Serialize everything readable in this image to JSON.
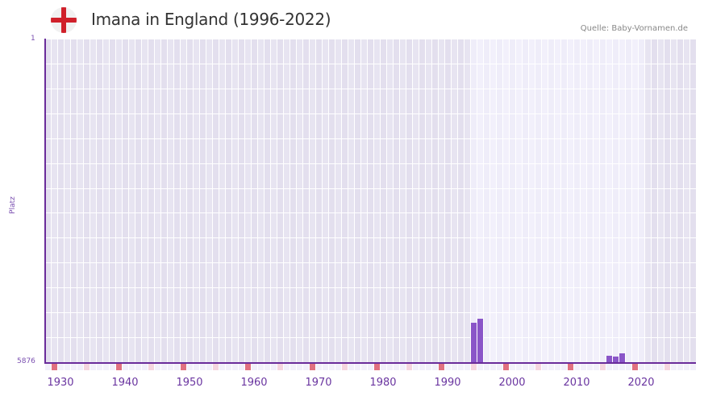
{
  "header": {
    "flag_icon": "england-flag-icon",
    "title": "Imana in England (1996-2022)",
    "source": "Quelle: Baby-Vornamen.de"
  },
  "colors": {
    "bar": "#8a55c8",
    "axis": "#6a2c9a",
    "bg_dark": "#e3dfee",
    "bg_light": "#efedf9",
    "marker_decade": "#e07080",
    "marker_half": "#f5d5df"
  },
  "chart_data": {
    "type": "bar",
    "title": "Imana in England (1996-2022)",
    "xlabel": "",
    "ylabel": "Platz",
    "y_inverted": true,
    "ylim": [
      5876,
      1
    ],
    "y_ticks": [
      "1",
      "5876"
    ],
    "x_range": [
      1928,
      2028
    ],
    "x_ticks": [
      "1930",
      "1940",
      "1950",
      "1960",
      "1970",
      "1980",
      "1990",
      "2000",
      "2010",
      "2020"
    ],
    "highlight_range": [
      1994,
      2020
    ],
    "grid": true,
    "categories": [
      "1994",
      "1995",
      "2015",
      "2016",
      "2017"
    ],
    "series": [
      {
        "name": "Platz",
        "values": [
          5156,
          5083,
          5759,
          5773,
          5714
        ]
      }
    ]
  },
  "axis": {
    "y_top": "1",
    "y_bottom": "5876",
    "y_title": "Platz"
  }
}
